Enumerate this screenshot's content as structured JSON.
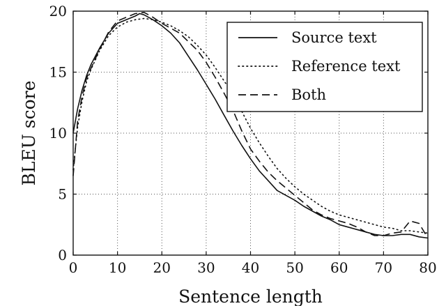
{
  "chart_data": {
    "type": "line",
    "xlabel": "Sentence length",
    "ylabel": "BLEU score",
    "xlim": [
      0,
      80
    ],
    "ylim": [
      0,
      20
    ],
    "xticks": [
      "0",
      "10",
      "20",
      "30",
      "40",
      "50",
      "60",
      "70",
      "80"
    ],
    "yticks": [
      "0",
      "5",
      "10",
      "15",
      "20"
    ],
    "grid": true,
    "legend_position": "top-right",
    "series": [
      {
        "name": "Source text",
        "style": "solid",
        "x": [
          0,
          1,
          2,
          3,
          4,
          6,
          8,
          10,
          12,
          14,
          15,
          16,
          18,
          20,
          22,
          24,
          26,
          28,
          30,
          32,
          34,
          36,
          38,
          40,
          42,
          44,
          46,
          48,
          50,
          52,
          54,
          56,
          58,
          60,
          62,
          64,
          66,
          68,
          70,
          72,
          74,
          76,
          78,
          80
        ],
        "y": [
          10.0,
          12.0,
          13.5,
          14.7,
          15.6,
          17.0,
          18.2,
          19.0,
          19.3,
          19.6,
          19.8,
          19.7,
          19.3,
          18.8,
          18.2,
          17.4,
          16.3,
          15.2,
          14.0,
          12.8,
          11.5,
          10.2,
          9.0,
          7.9,
          6.9,
          6.1,
          5.3,
          4.9,
          4.5,
          4.0,
          3.6,
          3.2,
          2.9,
          2.5,
          2.3,
          2.1,
          1.9,
          1.7,
          1.6,
          1.6,
          1.7,
          1.7,
          1.5,
          1.4
        ]
      },
      {
        "name": "Reference text",
        "style": "dotted",
        "x": [
          0,
          1,
          2,
          3,
          4,
          6,
          8,
          10,
          12,
          14,
          16,
          18,
          20,
          22,
          24,
          26,
          28,
          30,
          32,
          34,
          36,
          38,
          40,
          42,
          44,
          46,
          48,
          50,
          52,
          54,
          56,
          58,
          60,
          62,
          64,
          66,
          68,
          70,
          72,
          74,
          76,
          78,
          80
        ],
        "y": [
          7.0,
          10.5,
          12.6,
          14.2,
          15.2,
          16.8,
          18.0,
          18.7,
          19.1,
          19.3,
          19.4,
          19.3,
          19.1,
          18.8,
          18.4,
          17.9,
          17.2,
          16.4,
          15.4,
          14.3,
          13.2,
          11.8,
          10.4,
          9.2,
          8.1,
          7.1,
          6.3,
          5.6,
          5.0,
          4.5,
          4.0,
          3.6,
          3.3,
          3.1,
          2.9,
          2.7,
          2.5,
          2.3,
          2.2,
          2.0,
          2.0,
          1.9,
          1.8
        ]
      },
      {
        "name": "Both",
        "style": "dashed",
        "x": [
          0,
          1,
          2,
          3,
          4,
          6,
          8,
          10,
          12,
          14,
          16,
          18,
          20,
          22,
          24,
          26,
          28,
          30,
          32,
          34,
          36,
          38,
          40,
          42,
          44,
          46,
          48,
          50,
          52,
          54,
          56,
          58,
          60,
          62,
          64,
          66,
          68,
          70,
          72,
          74,
          76,
          78,
          80
        ],
        "y": [
          6.5,
          11.0,
          13.0,
          14.5,
          15.3,
          16.9,
          18.3,
          19.2,
          19.5,
          19.8,
          19.9,
          19.5,
          19.0,
          18.6,
          18.2,
          17.5,
          16.8,
          15.8,
          14.6,
          13.3,
          11.9,
          10.2,
          8.7,
          7.7,
          6.8,
          6.1,
          5.5,
          4.9,
          4.3,
          3.7,
          3.3,
          3.0,
          2.8,
          2.6,
          2.3,
          1.9,
          1.6,
          1.6,
          1.8,
          1.9,
          2.8,
          2.6,
          1.4
        ]
      }
    ]
  }
}
